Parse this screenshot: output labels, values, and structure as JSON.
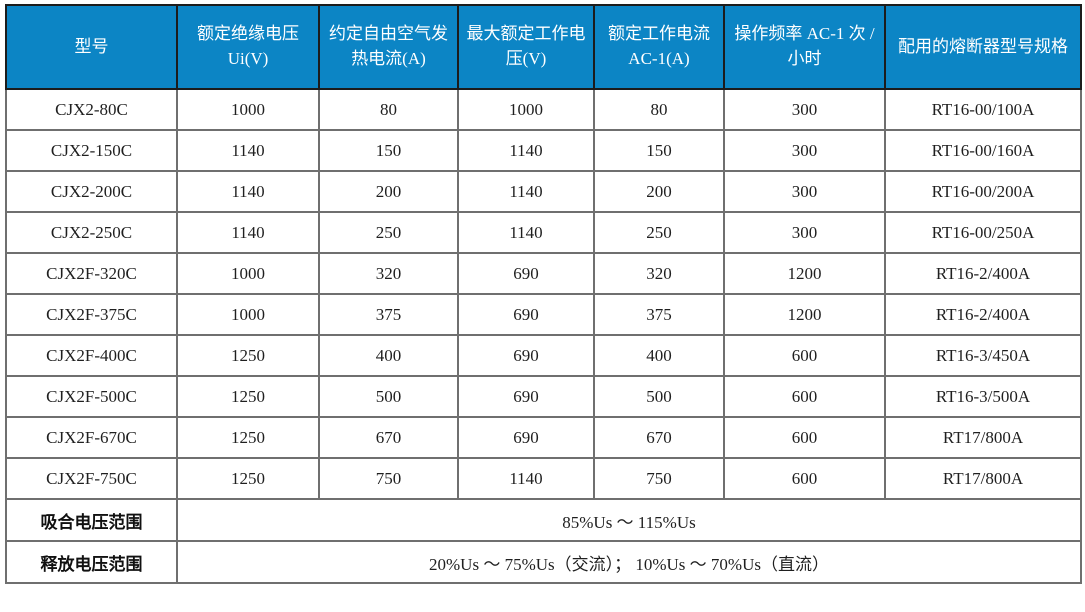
{
  "table": {
    "headers": [
      "型号",
      "额定绝缘电压 Ui(V)",
      "约定自由空气发热电流(A)",
      "最大额定工作电压(V)",
      "额定工作电流 AC-1(A)",
      "操作频率 AC-1 次 / 小时",
      "配用的熔断器型号规格"
    ],
    "rows": [
      [
        "CJX2-80C",
        "1000",
        "80",
        "1000",
        "80",
        "300",
        "RT16-00/100A"
      ],
      [
        "CJX2-150C",
        "1140",
        "150",
        "1140",
        "150",
        "300",
        "RT16-00/160A"
      ],
      [
        "CJX2-200C",
        "1140",
        "200",
        "1140",
        "200",
        "300",
        "RT16-00/200A"
      ],
      [
        "CJX2-250C",
        "1140",
        "250",
        "1140",
        "250",
        "300",
        "RT16-00/250A"
      ],
      [
        "CJX2F-320C",
        "1000",
        "320",
        "690",
        "320",
        "1200",
        "RT16-2/400A"
      ],
      [
        "CJX2F-375C",
        "1000",
        "375",
        "690",
        "375",
        "1200",
        "RT16-2/400A"
      ],
      [
        "CJX2F-400C",
        "1250",
        "400",
        "690",
        "400",
        "600",
        "RT16-3/450A"
      ],
      [
        "CJX2F-500C",
        "1250",
        "500",
        "690",
        "500",
        "600",
        "RT16-3/500A"
      ],
      [
        "CJX2F-670C",
        "1250",
        "670",
        "690",
        "670",
        "600",
        "RT17/800A"
      ],
      [
        "CJX2F-750C",
        "1250",
        "750",
        "1140",
        "750",
        "600",
        "RT17/800A"
      ]
    ],
    "footer_rows": [
      {
        "label": "吸合电压范围",
        "value": "85%Us ～ 115%Us"
      },
      {
        "label": "释放电压范围",
        "value": "20%Us ～ 75%Us（交流）； 10%Us ～ 70%Us（直流）"
      }
    ],
    "colors": {
      "header_bg": "#0c85c5",
      "header_text": "#ffffff",
      "grid_line": "#6f6f6f",
      "outer_border": "#262626",
      "body_text": "#1f1f1f"
    }
  }
}
